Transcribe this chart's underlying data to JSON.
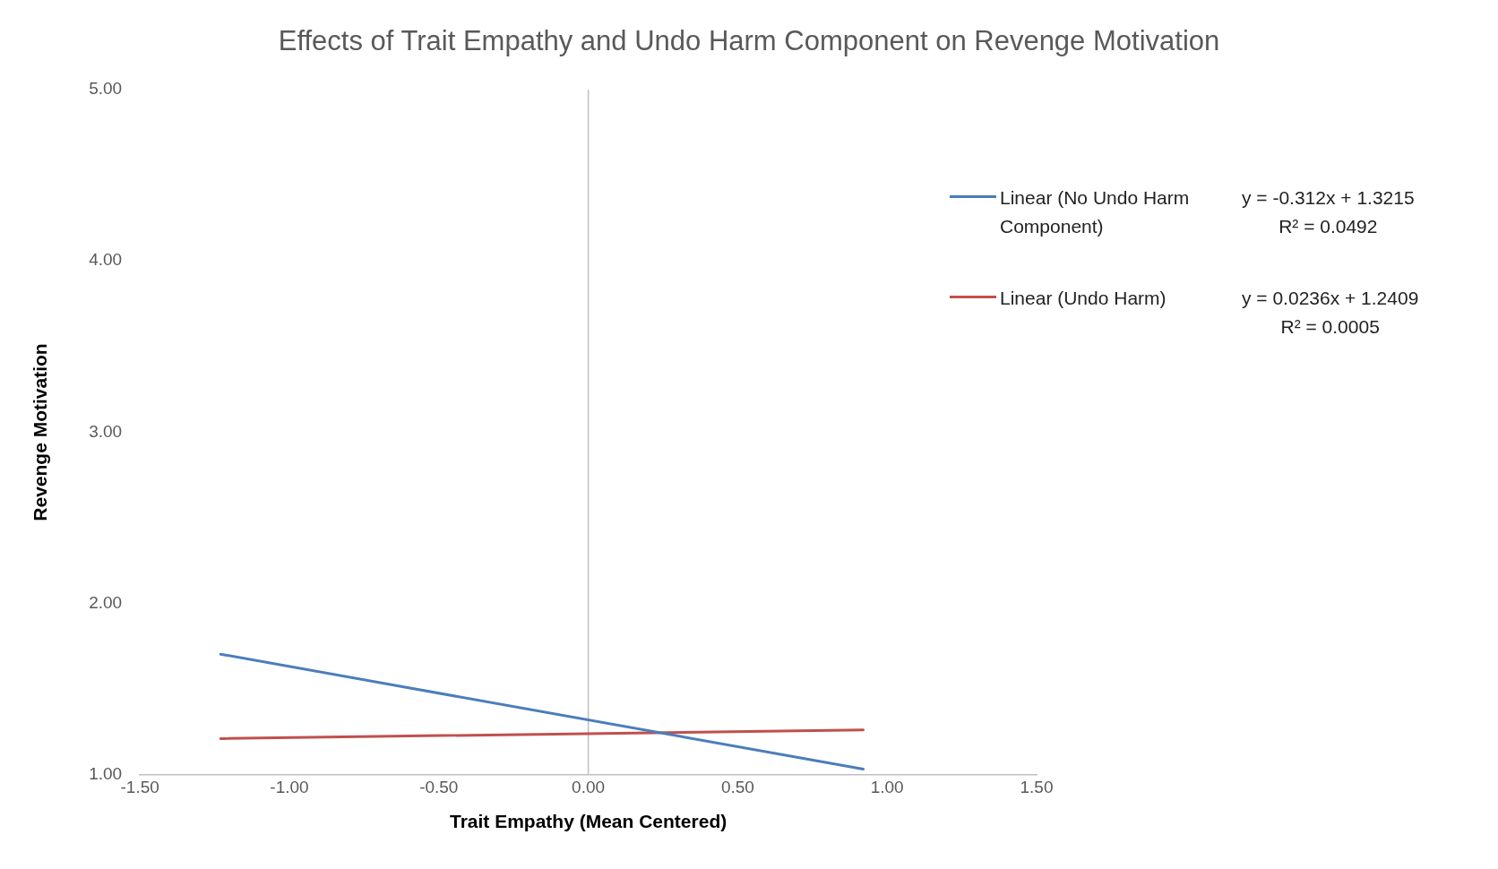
{
  "chart_data": {
    "type": "line",
    "title": "Effects of Trait Empathy and Undo Harm Component on Revenge Motivation",
    "xlabel": "Trait Empathy (Mean Centered)",
    "ylabel": "Revenge Motivation",
    "series": [
      {
        "name": "Linear (No Undo Harm Component)",
        "color": "#4a7ebb",
        "values": [
          1.705,
          1.034
        ]
      },
      {
        "name": "Linear (Undo Harm)",
        "color": "#c0504d",
        "values": [
          1.212,
          1.263
        ]
      }
    ],
    "x": [
      -1.23,
      0.92
    ],
    "annotations": [
      "y = -0.312x + 1.3215\nR² = 0.0492",
      "y = 0.0236x + 1.2409\nR² = 0.0005"
    ],
    "xlim": [
      -1.5,
      1.5
    ],
    "xticks": [
      {
        "value": -1.5,
        "label": "-1.50"
      },
      {
        "value": -1,
        "label": "-1.00"
      },
      {
        "value": -0.5,
        "label": "-0.50"
      },
      {
        "value": 0,
        "label": "0.00"
      },
      {
        "value": 0.5,
        "label": "0.50"
      },
      {
        "value": 1,
        "label": "1.00"
      },
      {
        "value": 1.5,
        "label": "1.50"
      }
    ],
    "ylim": [
      1,
      5
    ],
    "yticks": [
      {
        "value": 1,
        "label": "1.00"
      },
      {
        "value": 2,
        "label": "2.00"
      },
      {
        "value": 3,
        "label": "3.00"
      },
      {
        "value": 4,
        "label": "4.00"
      },
      {
        "value": 5,
        "label": "5.00"
      }
    ],
    "ref_lines": [
      {
        "axis": "x",
        "value": 0,
        "color": "#bfbfbf"
      }
    ],
    "grid": false,
    "legend": "right",
    "marker": "none",
    "line_style": "solid"
  }
}
